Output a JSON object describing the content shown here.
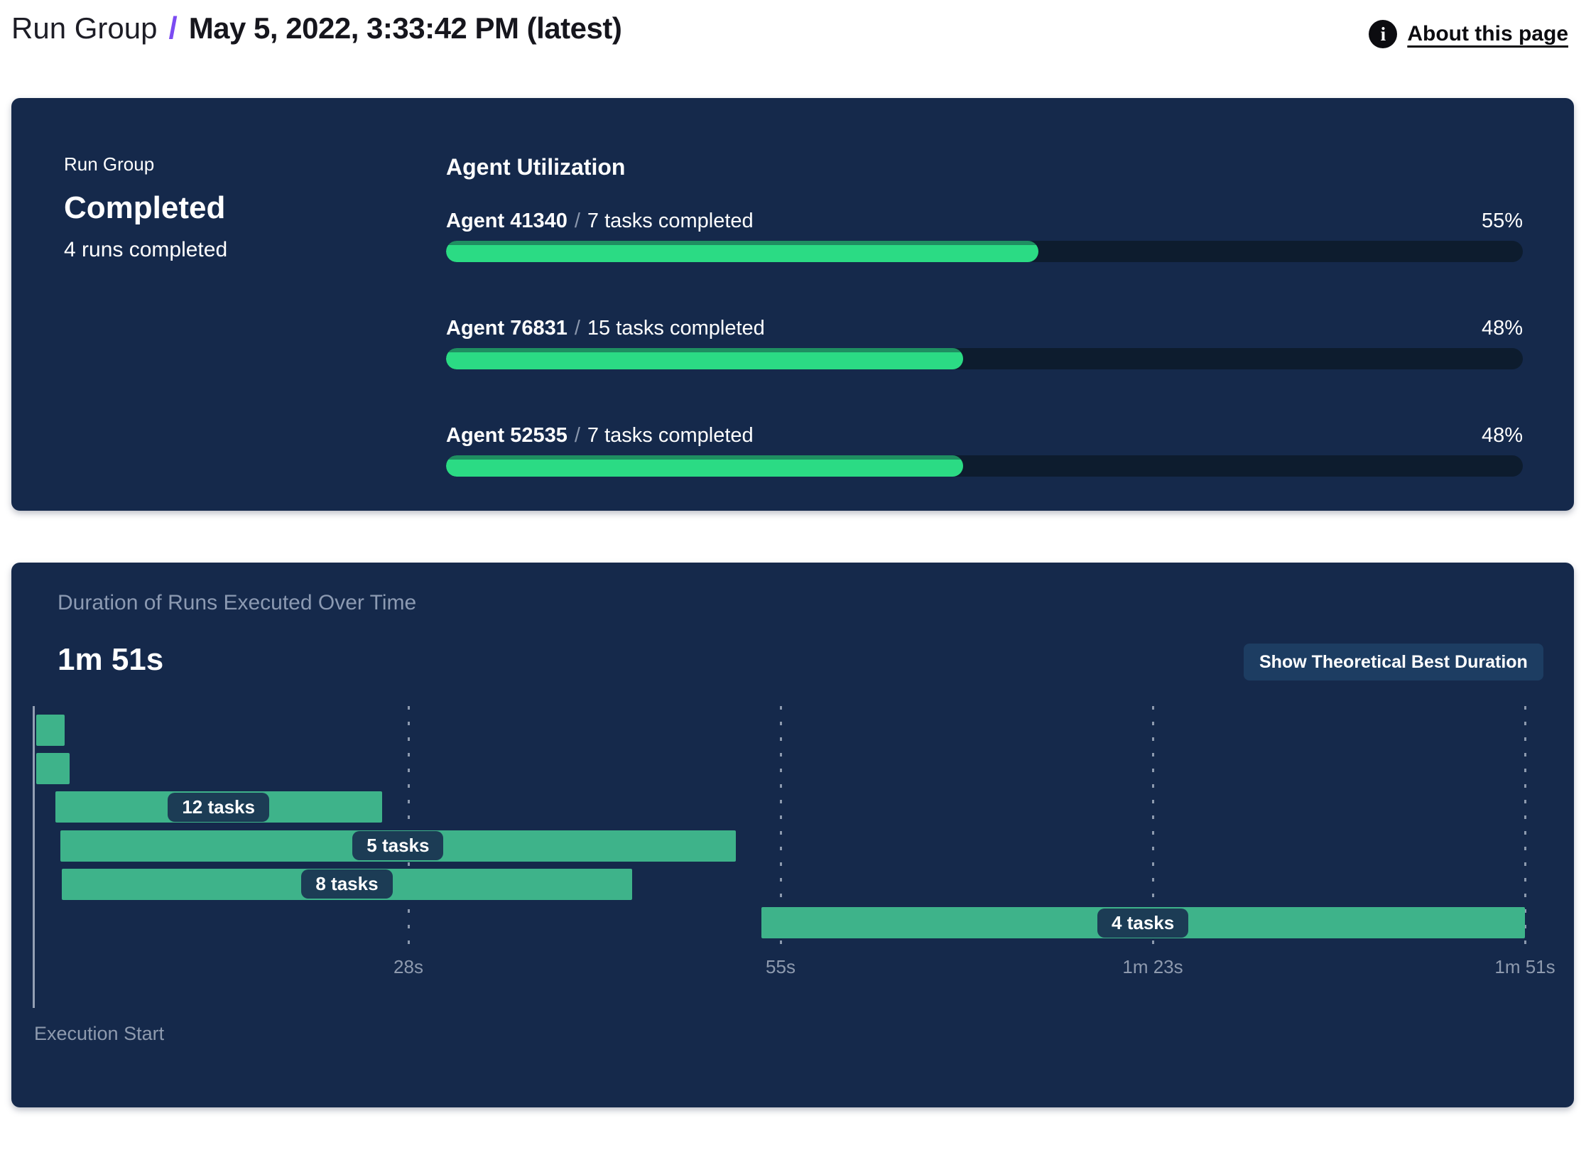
{
  "header": {
    "breadcrumb_root": "Run Group",
    "separator": "/",
    "title": "May 5, 2022, 3:33:42 PM (latest)",
    "about": {
      "icon_glyph": "i",
      "label": "About this page"
    }
  },
  "run_group_panel": {
    "label": "Run Group",
    "status": "Completed",
    "runs_summary": "4 runs completed",
    "agent_utilization": {
      "title": "Agent Utilization",
      "separator": "/",
      "agents": [
        {
          "name": "Agent 41340",
          "tasks_completed": "7 tasks completed",
          "utilization_percent": "55%",
          "utilization_value": 55
        },
        {
          "name": "Agent 76831",
          "tasks_completed": "15 tasks completed",
          "utilization_percent": "48%",
          "utilization_value": 48
        },
        {
          "name": "Agent 52535",
          "tasks_completed": "7 tasks completed",
          "utilization_percent": "48%",
          "utilization_value": 48
        }
      ]
    }
  },
  "duration_panel": {
    "title": "Duration of Runs Executed Over Time",
    "total_duration": "1m 51s",
    "show_best_button": "Show Theoretical Best Duration",
    "execution_start_label": "Execution Start"
  },
  "chart_data": {
    "type": "gantt",
    "title": "Duration of Runs Executed Over Time",
    "total_duration": "1m 51s",
    "x_axis": {
      "start_label": "Execution Start",
      "tick_labels": [
        "28s",
        "55s",
        "1m 23s",
        "1m 51s"
      ],
      "tick_seconds": [
        28,
        55,
        83,
        111
      ],
      "range_seconds": [
        0,
        111
      ],
      "gridlines": "dashed-vertical"
    },
    "rows": [
      {
        "label": "",
        "start_s": 0.3,
        "end_s": 2.4
      },
      {
        "label": "",
        "start_s": 0.3,
        "end_s": 2.8
      },
      {
        "label": "12 tasks",
        "start_s": 1.7,
        "end_s": 26.0
      },
      {
        "label": "5 tasks",
        "start_s": 2.1,
        "end_s": 52.3
      },
      {
        "label": "8 tasks",
        "start_s": 2.2,
        "end_s": 44.6
      },
      {
        "label": "4 tasks",
        "start_s": 54.2,
        "end_s": 111.0
      }
    ]
  },
  "colors": {
    "panel_background": "#15294B",
    "progress_fill_green": "#2BDB84",
    "progress_track": "#0D1C2E",
    "gantt_bar_green": "#3EB38A",
    "chip_background": "#1C3C55",
    "accent_purple": "#7B4BF2",
    "muted_text": "#8E9AAE",
    "button_background": "#1D3D62"
  }
}
